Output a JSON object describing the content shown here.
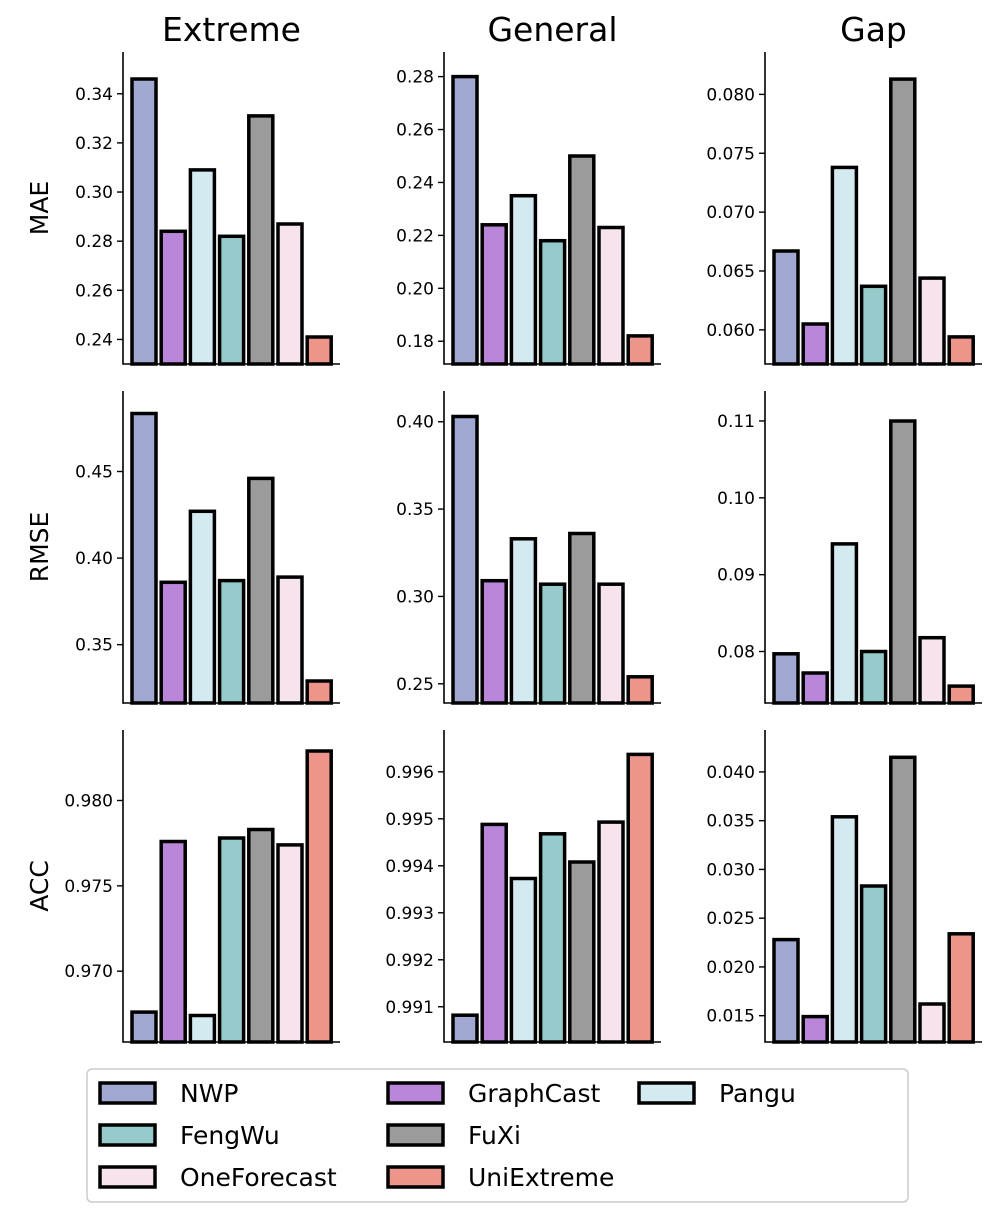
{
  "chart_data": {
    "type": "bar",
    "layout": "3x3 grid",
    "columns": [
      "Extreme",
      "General",
      "Gap"
    ],
    "rows": [
      "MAE",
      "RMSE",
      "ACC"
    ],
    "categories": [
      "NWP",
      "GraphCast",
      "Pangu",
      "FengWu",
      "FuXi",
      "OneForecast",
      "UniExtreme"
    ],
    "colors": [
      "#a1a8d2",
      "#b986d9",
      "#d3eaf1",
      "#97cbcb",
      "#9b9b9b",
      "#f7e3ed",
      "#ee958b"
    ],
    "panels": [
      {
        "row": "MAE",
        "column": "Extreme",
        "ylim": [
          0.23,
          0.357
        ],
        "ticks": [
          "0.24",
          "0.26",
          "0.28",
          "0.30",
          "0.32",
          "0.34"
        ],
        "values": [
          0.346,
          0.284,
          0.309,
          0.282,
          0.331,
          0.287,
          0.241
        ]
      },
      {
        "row": "MAE",
        "column": "General",
        "ylim": [
          0.1714,
          0.2893
        ],
        "ticks": [
          "0.18",
          "0.20",
          "0.22",
          "0.24",
          "0.26",
          "0.28"
        ],
        "values": [
          0.28,
          0.224,
          0.235,
          0.218,
          0.25,
          0.223,
          0.182
        ]
      },
      {
        "row": "MAE",
        "column": "Gap",
        "ylim": [
          0.0571,
          0.0836
        ],
        "ticks": [
          "0.060",
          "0.065",
          "0.070",
          "0.075",
          "0.080"
        ],
        "values": [
          0.0667,
          0.0605,
          0.0738,
          0.0637,
          0.0813,
          0.0644,
          0.0594
        ]
      },
      {
        "row": "RMSE",
        "column": "Extreme",
        "ylim": [
          0.3163,
          0.4965
        ],
        "ticks": [
          "0.35",
          "0.40",
          "0.45"
        ],
        "values": [
          0.4835,
          0.386,
          0.427,
          0.387,
          0.446,
          0.389,
          0.329
        ]
      },
      {
        "row": "RMSE",
        "column": "General",
        "ylim": [
          0.239,
          0.4176
        ],
        "ticks": [
          "0.25",
          "0.30",
          "0.35",
          "0.40"
        ],
        "values": [
          0.403,
          0.309,
          0.333,
          0.307,
          0.336,
          0.307,
          0.254
        ]
      },
      {
        "row": "RMSE",
        "column": "Gap",
        "ylim": [
          0.0733,
          0.1139
        ],
        "ticks": [
          "0.08",
          "0.09",
          "0.10",
          "0.11"
        ],
        "values": [
          0.0797,
          0.0772,
          0.094,
          0.08,
          0.11,
          0.0818,
          0.0755
        ]
      },
      {
        "row": "ACC",
        "column": "Extreme",
        "ylim": [
          0.96585,
          0.98413
        ],
        "ticks": [
          "0.970",
          "0.975",
          "0.980"
        ],
        "values": [
          0.9676,
          0.9776,
          0.9674,
          0.9778,
          0.9783,
          0.9774,
          0.9829
        ]
      },
      {
        "row": "ACC",
        "column": "General",
        "ylim": [
          0.99025,
          0.99689
        ],
        "ticks": [
          "0.991",
          "0.992",
          "0.993",
          "0.994",
          "0.995",
          "0.996"
        ],
        "values": [
          0.99082,
          0.99488,
          0.99373,
          0.99468,
          0.99408,
          0.99493,
          0.99637
        ]
      },
      {
        "row": "ACC",
        "column": "Gap",
        "ylim": [
          0.0123,
          0.0443
        ],
        "ticks": [
          "0.015",
          "0.020",
          "0.025",
          "0.030",
          "0.035",
          "0.040"
        ],
        "values": [
          0.0228,
          0.0149,
          0.0354,
          0.0283,
          0.0415,
          0.0162,
          0.0234
        ]
      }
    ],
    "legend": {
      "entries": [
        "NWP",
        "FengWu",
        "OneForecast",
        "GraphCast",
        "FuXi",
        "UniExtreme",
        "Pangu"
      ],
      "placement": "bottom",
      "columns": 3
    },
    "grid": false
  }
}
